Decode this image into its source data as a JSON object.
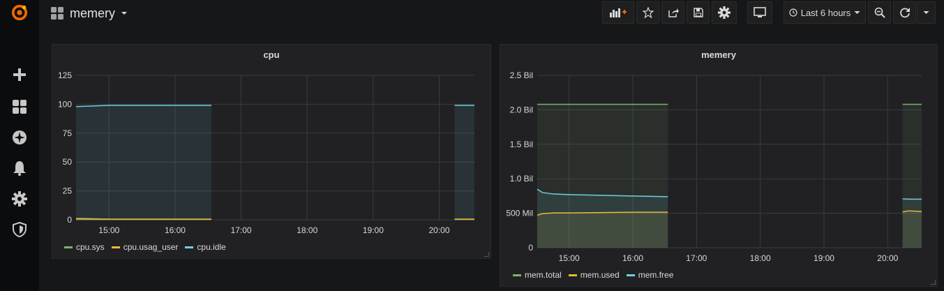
{
  "sidebar": {
    "items": [
      {
        "name": "grafana-logo"
      },
      {
        "name": "plus-icon"
      },
      {
        "name": "dashboards-icon"
      },
      {
        "name": "explore-icon"
      },
      {
        "name": "alerting-icon"
      },
      {
        "name": "configuration-icon"
      },
      {
        "name": "shield-icon"
      }
    ],
    "logo_color": "#f46800"
  },
  "topbar": {
    "dashboard_title": "memery",
    "time_range_label": "Last 6 hours",
    "buttons": [
      "add-panel",
      "star",
      "share",
      "save",
      "settings",
      "tv-mode",
      "time-picker",
      "zoom-out",
      "refresh",
      "refresh-interval"
    ]
  },
  "panels": {
    "cpu": {
      "title": "cpu",
      "legend": [
        {
          "label": "cpu.sys",
          "color": "#7eb26d"
        },
        {
          "label": "cpu.usag_user",
          "color": "#eab839"
        },
        {
          "label": "cpu.idle",
          "color": "#6ed0e0"
        }
      ]
    },
    "memery": {
      "title": "memery",
      "legend": [
        {
          "label": "mem.total",
          "color": "#7eb26d"
        },
        {
          "label": "mem.used",
          "color": "#eab839"
        },
        {
          "label": "mem.free",
          "color": "#6ed0e0"
        }
      ]
    }
  },
  "chart_data": [
    {
      "type": "area",
      "title": "cpu",
      "x_ticks": [
        "15:00",
        "16:00",
        "17:00",
        "18:00",
        "19:00",
        "20:00"
      ],
      "y_ticks": [
        "0",
        "25",
        "50",
        "75",
        "100",
        "125"
      ],
      "ylim": [
        0,
        125
      ],
      "xlim": [
        "14:30",
        "20:32"
      ],
      "grid": true,
      "legend_position": "bottom-left",
      "series": [
        {
          "name": "cpu.sys",
          "color": "#7eb26d",
          "segments": [
            {
              "x": [
                "14:30",
                "15:00",
                "15:30",
                "16:00",
                "16:33"
              ],
              "y": [
                0.3,
                0.3,
                0.3,
                0.3,
                0.3
              ]
            },
            {
              "x": [
                "20:14",
                "20:32"
              ],
              "y": [
                0.3,
                0.3
              ]
            }
          ]
        },
        {
          "name": "cpu.usag_user",
          "color": "#eab839",
          "segments": [
            {
              "x": [
                "14:30",
                "15:00",
                "15:30",
                "16:00",
                "16:33"
              ],
              "y": [
                1.2,
                0.6,
                0.6,
                0.6,
                0.6
              ]
            },
            {
              "x": [
                "20:14",
                "20:32"
              ],
              "y": [
                0.6,
                0.6
              ]
            }
          ]
        },
        {
          "name": "cpu.idle",
          "color": "#6ed0e0",
          "segments": [
            {
              "x": [
                "14:30",
                "14:45",
                "15:00",
                "15:30",
                "16:00",
                "16:33"
              ],
              "y": [
                98,
                98.5,
                99,
                99,
                99,
                99
              ]
            },
            {
              "x": [
                "20:14",
                "20:32"
              ],
              "y": [
                99,
                99
              ]
            }
          ]
        }
      ]
    },
    {
      "type": "area",
      "title": "memery",
      "x_ticks": [
        "15:00",
        "16:00",
        "17:00",
        "18:00",
        "19:00",
        "20:00"
      ],
      "y_ticks": [
        "0",
        "500 Mil",
        "1.0 Bil",
        "1.5 Bil",
        "2.0 Bil",
        "2.5 Bil"
      ],
      "ylim": [
        0,
        2500000000
      ],
      "xlim": [
        "14:30",
        "20:32"
      ],
      "grid": true,
      "legend_position": "bottom-left",
      "series": [
        {
          "name": "mem.total",
          "color": "#7eb26d",
          "segments": [
            {
              "x": [
                "14:30",
                "15:00",
                "15:30",
                "16:00",
                "16:33"
              ],
              "y": [
                2080000000,
                2080000000,
                2080000000,
                2080000000,
                2080000000
              ]
            },
            {
              "x": [
                "20:14",
                "20:32"
              ],
              "y": [
                2080000000,
                2080000000
              ]
            }
          ]
        },
        {
          "name": "mem.used",
          "color": "#eab839",
          "segments": [
            {
              "x": [
                "14:30",
                "14:35",
                "14:45",
                "15:00",
                "15:30",
                "16:00",
                "16:33"
              ],
              "y": [
                470000000,
                495000000,
                505000000,
                505000000,
                510000000,
                515000000,
                515000000
              ]
            },
            {
              "x": [
                "20:14",
                "20:20",
                "20:32"
              ],
              "y": [
                520000000,
                535000000,
                525000000
              ]
            }
          ]
        },
        {
          "name": "mem.free",
          "color": "#6ed0e0",
          "segments": [
            {
              "x": [
                "14:30",
                "14:35",
                "14:45",
                "15:00",
                "15:30",
                "16:00",
                "16:33"
              ],
              "y": [
                850000000,
                800000000,
                780000000,
                770000000,
                760000000,
                750000000,
                740000000
              ]
            },
            {
              "x": [
                "20:14",
                "20:20",
                "20:32"
              ],
              "y": [
                710000000,
                705000000,
                705000000
              ]
            }
          ]
        }
      ]
    }
  ]
}
